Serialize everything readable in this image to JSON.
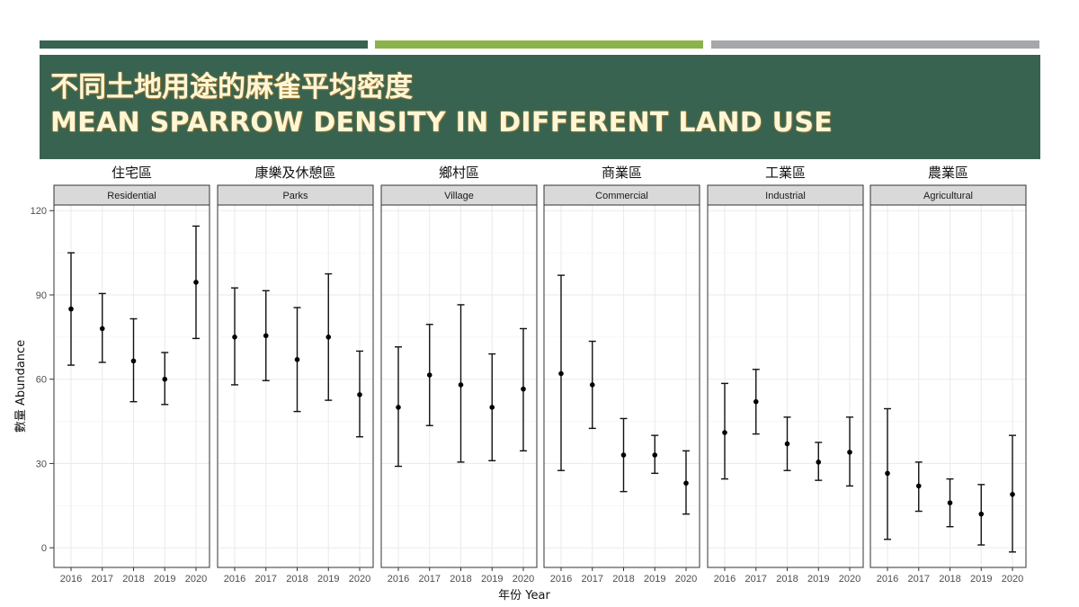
{
  "slide": {
    "title_zh": "不同土地用途的麻雀平均密度",
    "title_en": "MEAN SPARROW DENSITY IN DIFFERENT LAND USE",
    "colors": {
      "accent_dark_green": "#376350",
      "accent_light_green": "#8ab34a",
      "accent_gray": "#a6a7ab",
      "banner_background": "#376350",
      "title_text": "#fff6d6"
    }
  },
  "chart_data": {
    "type": "errorbar",
    "xlabel": "年份 Year",
    "ylabel": "數量  Abundance",
    "ylim": [
      -7,
      122
    ],
    "yticks": [
      0,
      30,
      60,
      90,
      120
    ],
    "x": [
      "2016",
      "2017",
      "2018",
      "2019",
      "2020"
    ],
    "grid": true,
    "panels": [
      {
        "label_zh": "住宅區",
        "strip": "Residential",
        "mean": [
          85,
          78,
          66.5,
          60,
          94.5
        ],
        "lower": [
          65,
          66,
          52,
          51,
          74.5
        ],
        "upper": [
          105,
          90.5,
          81.5,
          69.5,
          114.5
        ]
      },
      {
        "label_zh": "康樂及休憩區",
        "strip": "Parks",
        "mean": [
          75,
          75.5,
          67,
          75,
          54.5
        ],
        "lower": [
          58,
          59.5,
          48.5,
          52.5,
          39.5
        ],
        "upper": [
          92.5,
          91.5,
          85.5,
          97.5,
          70
        ]
      },
      {
        "label_zh": "鄉村區",
        "strip": "Village",
        "mean": [
          50,
          61.5,
          58,
          50,
          56.5
        ],
        "lower": [
          29,
          43.5,
          30.5,
          31,
          34.5
        ],
        "upper": [
          71.5,
          79.5,
          86.5,
          69,
          78
        ]
      },
      {
        "label_zh": "商業區",
        "strip": "Commercial",
        "mean": [
          62,
          58,
          33,
          33,
          23
        ],
        "lower": [
          27.5,
          42.5,
          20,
          26.5,
          12
        ],
        "upper": [
          97,
          73.5,
          46,
          40,
          34.5
        ]
      },
      {
        "label_zh": "工業區",
        "strip": "Industrial",
        "mean": [
          41,
          52,
          37,
          30.5,
          34
        ],
        "lower": [
          24.5,
          40.5,
          27.5,
          24,
          22
        ],
        "upper": [
          58.5,
          63.5,
          46.5,
          37.5,
          46.5
        ]
      },
      {
        "label_zh": "農業區",
        "strip": "Agricultural",
        "mean": [
          26.5,
          22,
          16,
          12,
          19
        ],
        "lower": [
          3,
          13,
          7.5,
          1,
          -1.5
        ],
        "upper": [
          49.5,
          30.5,
          24.5,
          22.5,
          40
        ]
      }
    ]
  }
}
